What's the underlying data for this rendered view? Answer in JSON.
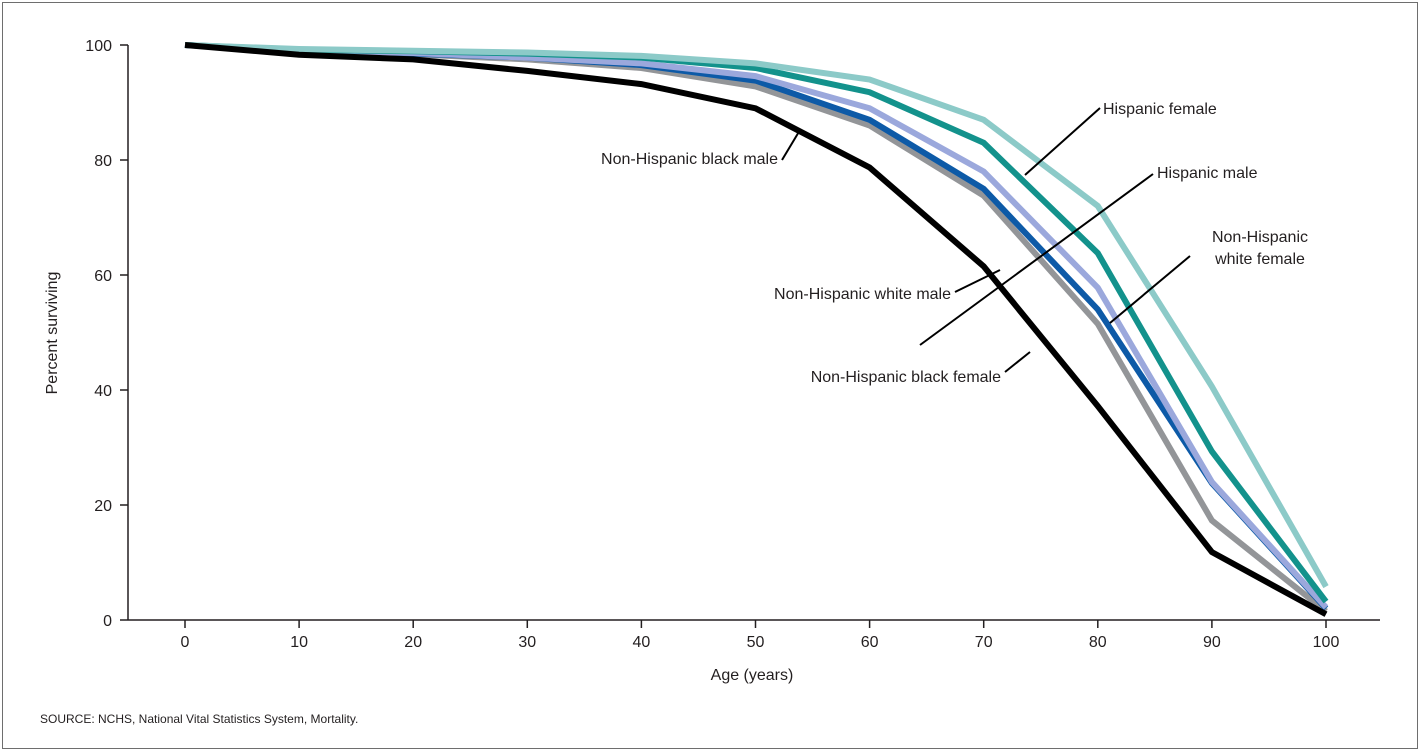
{
  "source": "SOURCE: NCHS, National Vital Statistics System, Mortality.",
  "chart_data": {
    "type": "line",
    "xlabel": "Age (years)",
    "ylabel": "Percent surviving",
    "xlim": [
      -5,
      105
    ],
    "ylim": [
      0,
      100
    ],
    "x": [
      0,
      10,
      20,
      30,
      40,
      50,
      60,
      70,
      80,
      90,
      100
    ],
    "xticks": [
      0,
      10,
      20,
      30,
      40,
      50,
      60,
      70,
      80,
      90,
      100
    ],
    "yticks": [
      0,
      20,
      40,
      60,
      80,
      100
    ],
    "grid": false,
    "series": [
      {
        "name": "Non-Hispanic black female",
        "color": "#939598",
        "values": [
          100,
          98.8,
          98.4,
          97.5,
          96,
          92.8,
          86,
          73.8,
          51.5,
          17.3,
          1.5
        ]
      },
      {
        "name": "Non-Hispanic white male",
        "color": "#0d5aa7",
        "values": [
          100,
          98.9,
          98.5,
          97.8,
          96.5,
          93.8,
          87,
          75,
          54,
          23.8,
          2
        ]
      },
      {
        "name": "Hispanic male",
        "color": "#9ba8dc",
        "values": [
          100,
          99,
          98.6,
          97.8,
          96.8,
          94.6,
          89,
          78,
          57.8,
          24,
          2.2
        ]
      },
      {
        "name": "Non-Hispanic white female",
        "color": "#13928c",
        "values": [
          100,
          99.2,
          98.9,
          98.5,
          97.8,
          96,
          91.8,
          83,
          63.8,
          29.3,
          3.2
        ]
      },
      {
        "name": "Hispanic female",
        "color": "#8ccac8",
        "values": [
          100,
          99.3,
          99,
          98.7,
          98.1,
          96.8,
          94,
          87,
          72,
          40.6,
          5.8
        ]
      },
      {
        "name": "Non-Hispanic black male",
        "color": "#000000",
        "values": [
          100,
          98.3,
          97.5,
          95.5,
          93.2,
          89,
          78.7,
          61.5,
          37.2,
          11.8,
          1
        ]
      }
    ],
    "annotations": [
      {
        "lines": [
          "Hispanic female"
        ]
      },
      {
        "lines": [
          "Hispanic male"
        ]
      },
      {
        "lines": [
          "Non-Hispanic",
          "white female"
        ]
      },
      {
        "lines": [
          "Non-Hispanic black male"
        ]
      },
      {
        "lines": [
          "Non-Hispanic white male"
        ]
      },
      {
        "lines": [
          "Non-Hispanic black female"
        ]
      }
    ]
  }
}
